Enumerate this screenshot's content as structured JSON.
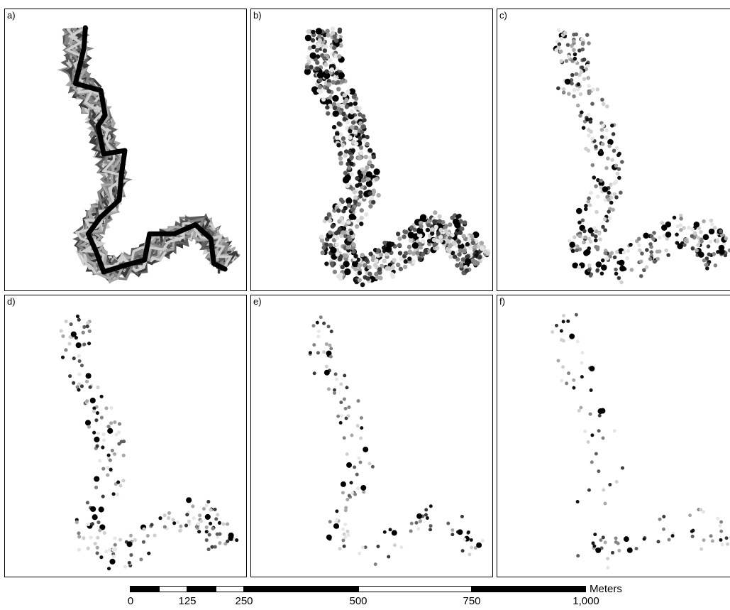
{
  "panels": [
    {
      "id": "a",
      "label": "a)"
    },
    {
      "id": "b",
      "label": "b)"
    },
    {
      "id": "c",
      "label": "c)"
    },
    {
      "id": "d",
      "label": "d)"
    },
    {
      "id": "e",
      "label": "e)"
    },
    {
      "id": "f",
      "label": "f)"
    }
  ],
  "scale_bar": {
    "unit": "Meters",
    "tick_labels": [
      "0",
      "125",
      "250",
      "500",
      "750",
      "1,000"
    ],
    "tick_values": [
      0,
      125,
      250,
      500,
      750,
      1000
    ]
  },
  "colors": {
    "point_shades": [
      "#111111",
      "#3a3a3a",
      "#5e5e5e",
      "#848484",
      "#a8a8a8",
      "#cfcfcf",
      "#e6e6e6"
    ],
    "path": "#000000"
  }
}
